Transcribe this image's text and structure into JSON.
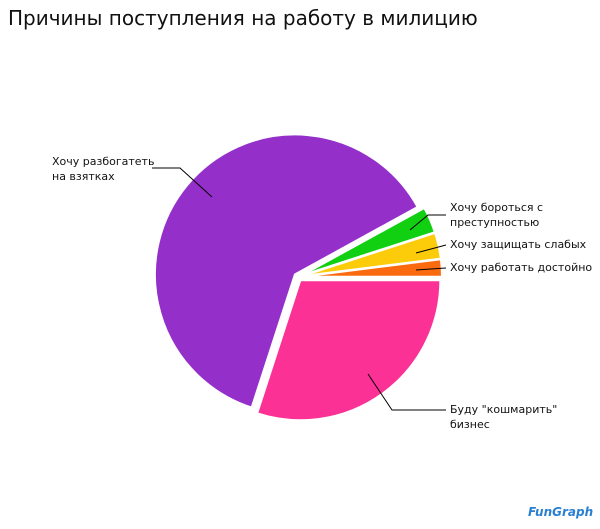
{
  "chart_data": {
    "type": "pie",
    "title": "Причины поступления на работу в милицию",
    "categories": [
      "Буду \"кошмарить\" бизнес",
      "Хочу разбогатеть на взятках",
      "Хочу бороться с преступностью",
      "Хочу защищать слабых",
      "Хочу работать достойно"
    ],
    "values": [
      30,
      62,
      3,
      3,
      2
    ],
    "colors": [
      "#fb3196",
      "#9430c9",
      "#11cf11",
      "#fccc0a",
      "#fc6a10"
    ],
    "logo": "FunGraph"
  }
}
